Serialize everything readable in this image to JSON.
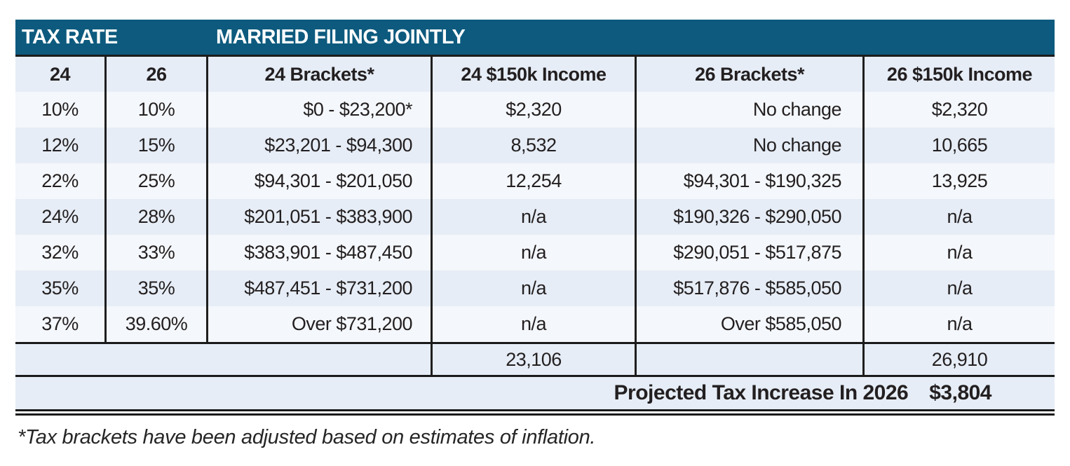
{
  "table": {
    "title_bar": {
      "left": "TAX RATE",
      "right": "MARRIED FILING JOINTLY"
    },
    "columns": [
      "24",
      "26",
      "24 Brackets*",
      "24 $150k Income",
      "26 Brackets*",
      "26 $150k Income"
    ],
    "rows": [
      [
        "10%",
        "10%",
        "$0 - $23,200*",
        "$2,320",
        "No change",
        "$2,320"
      ],
      [
        "12%",
        "15%",
        "$23,201 - $94,300",
        "8,532",
        "No change",
        "10,665"
      ],
      [
        "22%",
        "25%",
        "$94,301 - $201,050",
        "12,254",
        "$94,301 - $190,325",
        "13,925"
      ],
      [
        "24%",
        "28%",
        "$201,051 - $383,900",
        "n/a",
        "$190,326 - $290,050",
        "n/a"
      ],
      [
        "32%",
        "33%",
        "$383,901 - $487,450",
        "n/a",
        "$290,051 - $517,875",
        "n/a"
      ],
      [
        "35%",
        "35%",
        "$487,451 - $731,200",
        "n/a",
        "$517,876 - $585,050",
        "n/a"
      ],
      [
        "37%",
        "39.60%",
        "Over $731,200",
        "n/a",
        "Over $585,050",
        "n/a"
      ]
    ],
    "totals": {
      "income24": "23,106",
      "income26": "26,910"
    },
    "summary": {
      "label": "Projected Tax Increase In 2026",
      "value": "$3,804"
    },
    "footnote": "*Tax brackets have been adjusted based on estimates of inflation."
  },
  "colors": {
    "header_teal": "#0d5a7e",
    "row_light": "#f4f7fb",
    "row_dark": "#e6edf6",
    "text": "#231f20",
    "line": "#1a1a1a"
  }
}
